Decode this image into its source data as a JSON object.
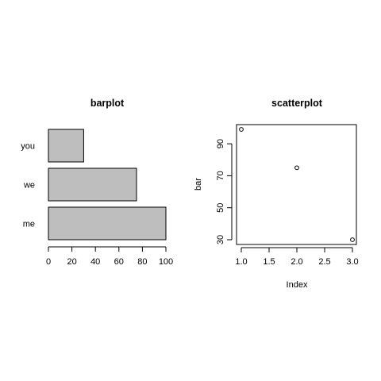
{
  "chart_data": [
    {
      "type": "bar",
      "orientation": "horizontal",
      "title": "barplot",
      "categories": [
        "you",
        "we",
        "me"
      ],
      "values": [
        30,
        75,
        100
      ],
      "xlim": [
        0,
        100
      ],
      "xticks": [
        0,
        20,
        40,
        60,
        80,
        100
      ],
      "xlabel": "",
      "ylabel": "",
      "bar_color": "#bebebe",
      "grid": false
    },
    {
      "type": "scatter",
      "title": "scatterplot",
      "x": [
        1,
        2,
        3
      ],
      "y": [
        99,
        75,
        30
      ],
      "xlim": [
        1,
        3
      ],
      "ylim": [
        30,
        99
      ],
      "xticks": [
        "1.0",
        "1.5",
        "2.0",
        "2.5",
        "3.0"
      ],
      "yticks": [
        "30",
        "50",
        "70",
        "90"
      ],
      "xlabel": "Index",
      "ylabel": "bar",
      "marker": "open-circle",
      "grid": false
    }
  ]
}
